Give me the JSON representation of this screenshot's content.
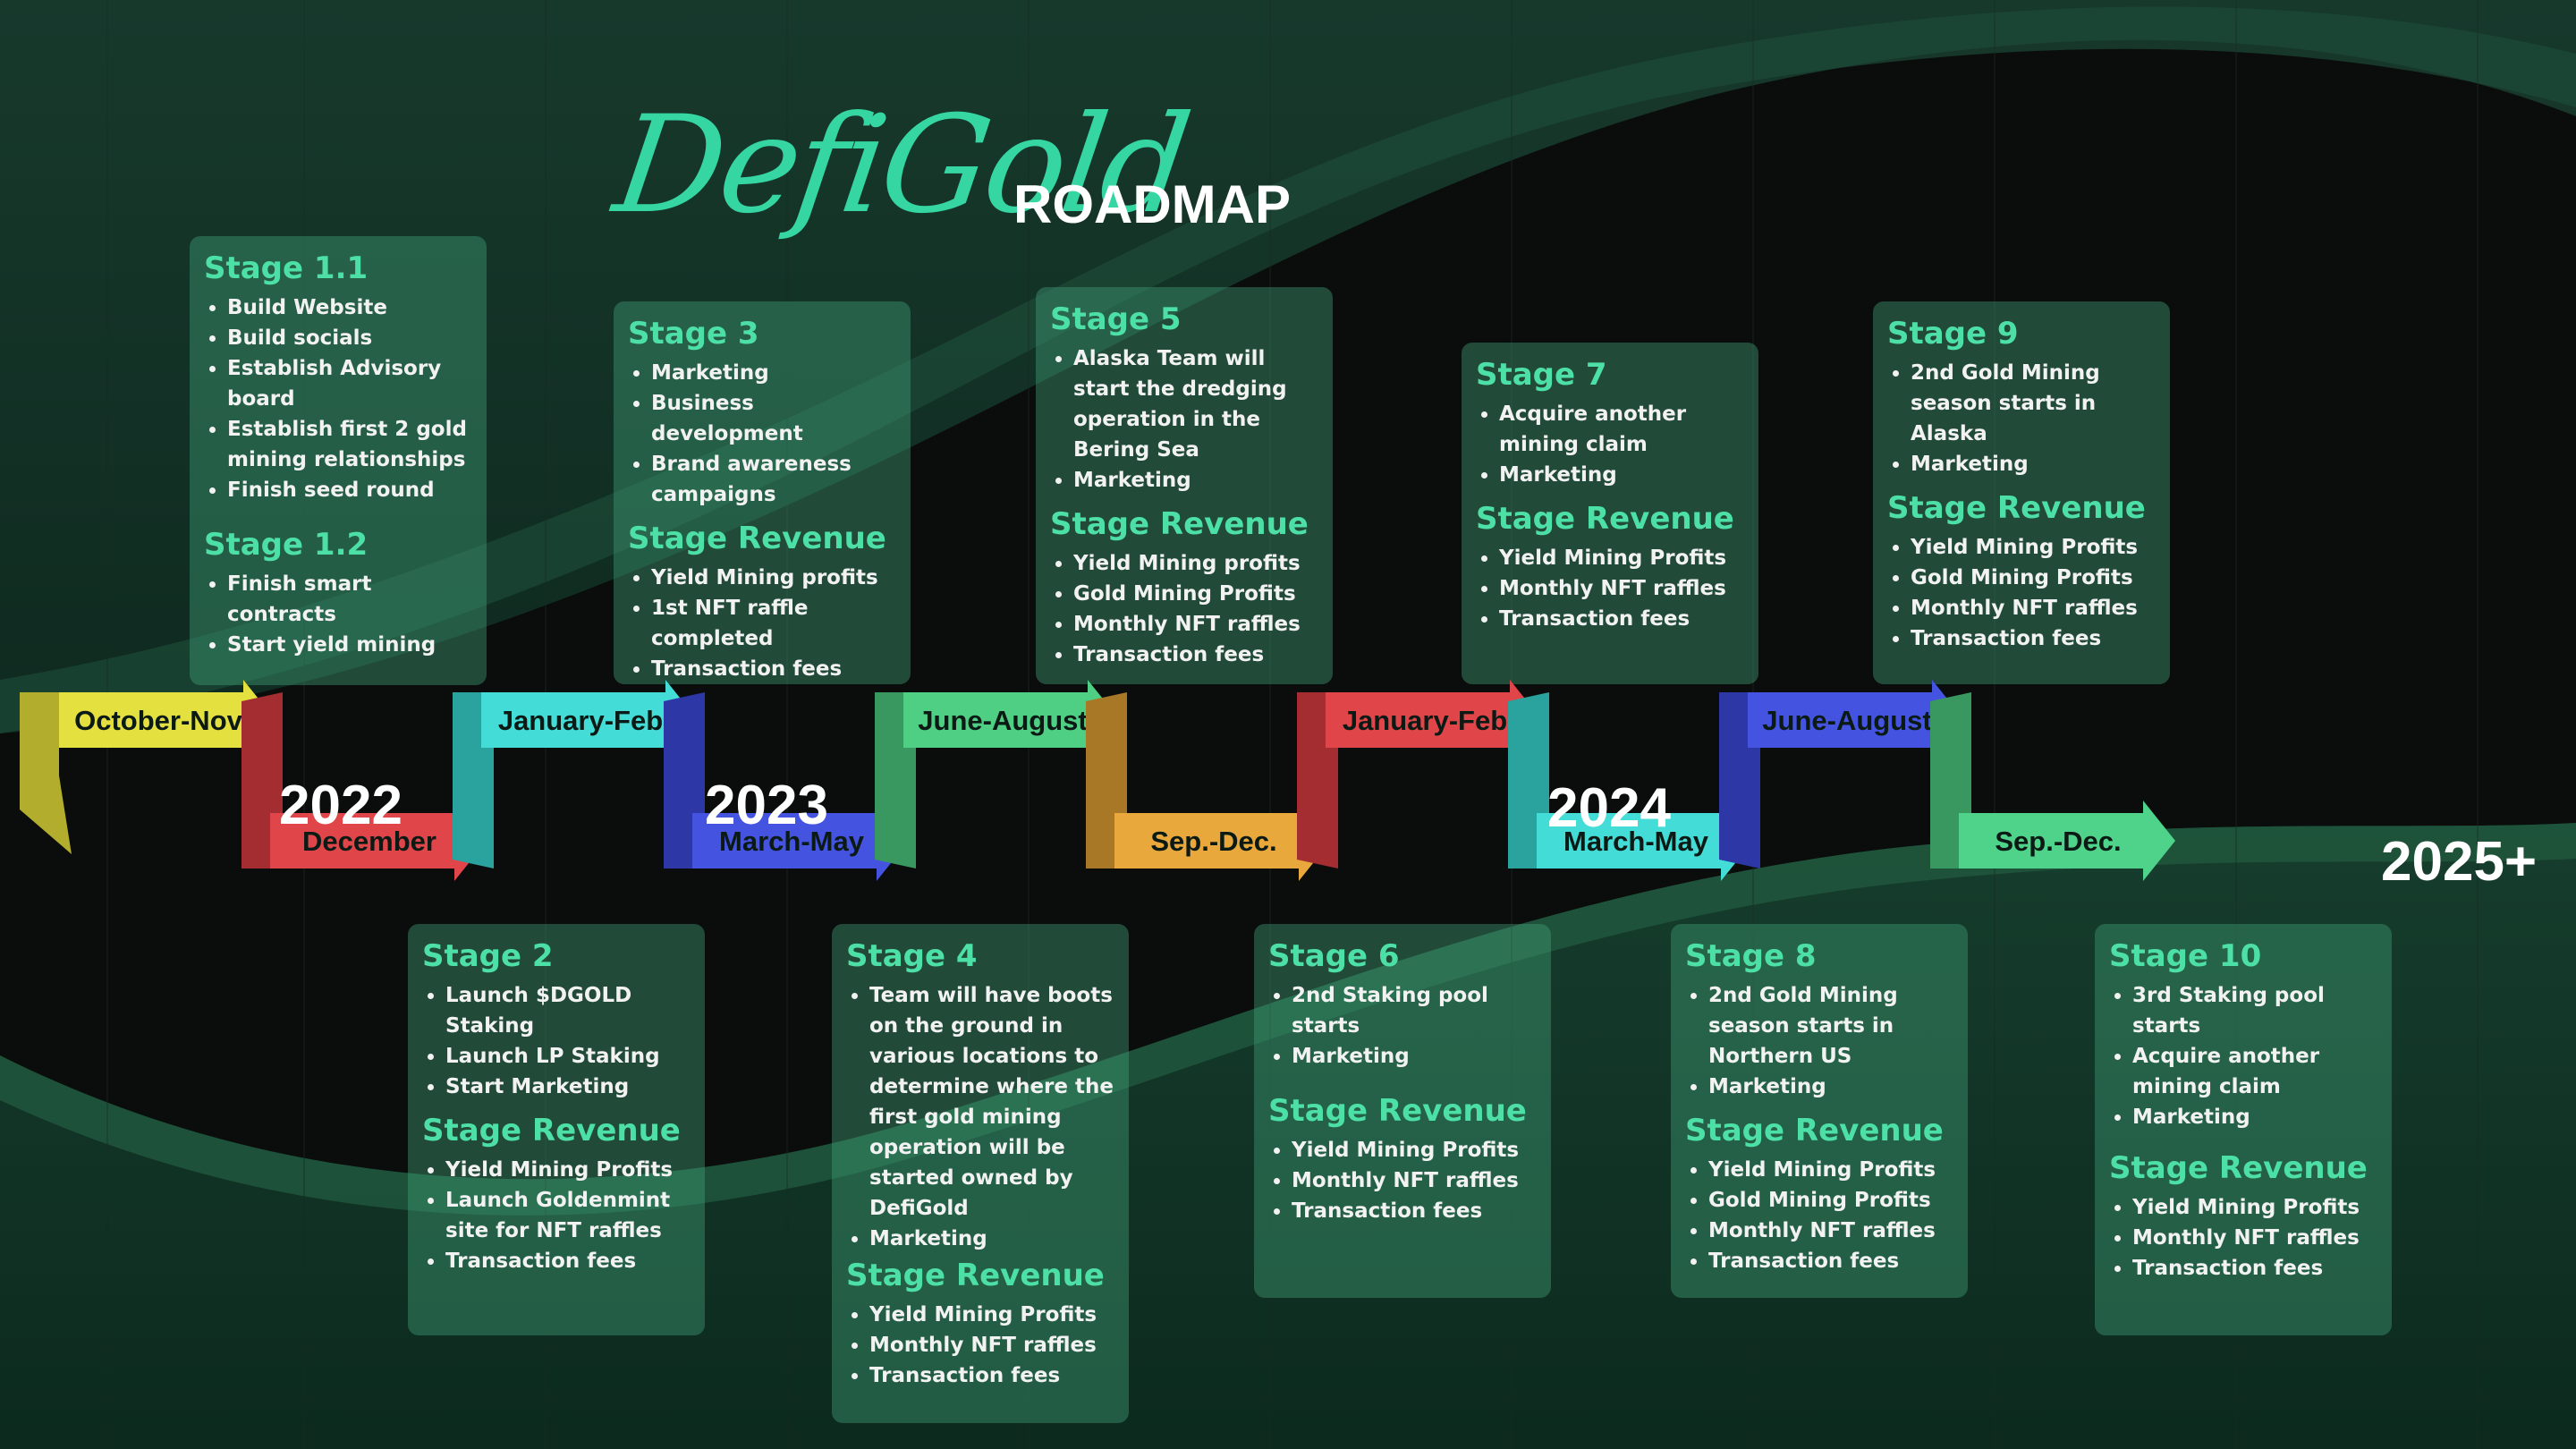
{
  "title": {
    "script": "DefiGold",
    "word": "ROADMAP"
  },
  "years": [
    "2022",
    "2023",
    "2024",
    "2025+"
  ],
  "timeline": [
    {
      "label": "October-Nov",
      "color": "#e3e03f",
      "dark": "#b2ad2c"
    },
    {
      "label": "December",
      "color": "#e0454a",
      "dark": "#a32d31"
    },
    {
      "label": "January-Feb",
      "color": "#43dcd6",
      "dark": "#2aa29d"
    },
    {
      "label": "March-May",
      "color": "#4453e0",
      "dark": "#2d38a6"
    },
    {
      "label": "June-August",
      "color": "#4fcf83",
      "dark": "#39985f"
    },
    {
      "label": "Sep.-Dec.",
      "color": "#e8a83c",
      "dark": "#a87826"
    },
    {
      "label": "January-Feb",
      "color": "#e0454a",
      "dark": "#a32d31"
    },
    {
      "label": "March-May",
      "color": "#43dcd6",
      "dark": "#2aa29d"
    },
    {
      "label": "June-August",
      "color": "#4453e0",
      "dark": "#2d38a6"
    },
    {
      "label": "Sep.-Dec.",
      "color": "#4fd38a",
      "dark": "#39985f"
    }
  ],
  "stages": {
    "s1": {
      "title1": "Stage 1.1",
      "items1": [
        "Build Website",
        "Build socials",
        "Establish Advisory board",
        "Establish first 2 gold mining relationships",
        "Finish seed round"
      ],
      "title2": "Stage 1.2",
      "items2": [
        "Finish smart contracts",
        "Start yield mining"
      ]
    },
    "s2": {
      "title": "Stage 2",
      "items": [
        "Launch $DGOLD Staking",
        "Launch LP Staking",
        "Start Marketing"
      ],
      "rev_title": "Stage Revenue",
      "rev": [
        "Yield Mining Profits",
        "Launch Goldenmint site for NFT raffles",
        "Transaction fees"
      ]
    },
    "s3": {
      "title": "Stage 3",
      "items": [
        "Marketing",
        "Business development",
        "Brand awareness campaigns"
      ],
      "rev_title": "Stage Revenue",
      "rev": [
        "Yield Mining profits",
        "1st NFT raffle completed",
        "Transaction fees"
      ]
    },
    "s4": {
      "title": "Stage 4",
      "items": [
        "Team will have boots on the ground in various locations to determine where the first gold mining operation will be started owned by DefiGold",
        "Marketing"
      ],
      "rev_title": "Stage Revenue",
      "rev": [
        "Yield Mining Profits",
        "Monthly NFT raffles",
        "Transaction fees"
      ]
    },
    "s5": {
      "title": "Stage 5",
      "items": [
        "Alaska Team will start the dredging operation in the Bering Sea",
        "Marketing"
      ],
      "rev_title": "Stage Revenue",
      "rev": [
        "Yield Mining profits",
        "Gold Mining Profits",
        "Monthly NFT raffles",
        "Transaction fees"
      ]
    },
    "s6": {
      "title": "Stage 6",
      "items": [
        "2nd Staking pool starts",
        "Marketing"
      ],
      "rev_title": "Stage Revenue",
      "rev": [
        "Yield Mining Profits",
        "Monthly NFT raffles",
        "Transaction fees"
      ]
    },
    "s7": {
      "title": "Stage 7",
      "items": [
        "Acquire another mining claim",
        "Marketing"
      ],
      "rev_title": "Stage Revenue",
      "rev": [
        "Yield Mining Profits",
        "Monthly NFT raffles",
        "Transaction fees"
      ]
    },
    "s8": {
      "title": "Stage 8",
      "items": [
        "2nd Gold Mining season starts in Northern US",
        "Marketing"
      ],
      "rev_title": "Stage Revenue",
      "rev": [
        "Yield Mining Profits",
        "Gold Mining Profits",
        "Monthly NFT raffles",
        "Transaction fees"
      ]
    },
    "s9": {
      "title": "Stage 9",
      "items": [
        "2nd Gold Mining season starts in Alaska",
        "Marketing"
      ],
      "rev_title": "Stage Revenue",
      "rev": [
        "Yield Mining Profits",
        "Gold Mining Profits",
        "Monthly NFT raffles",
        "Transaction fees"
      ]
    },
    "s10": {
      "title": "Stage 10",
      "items": [
        "3rd Staking pool starts",
        "Acquire another mining claim",
        "Marketing"
      ],
      "rev_title": "Stage Revenue",
      "rev": [
        "Yield Mining Profits",
        "Monthly NFT raffles",
        "Transaction fees"
      ]
    }
  }
}
